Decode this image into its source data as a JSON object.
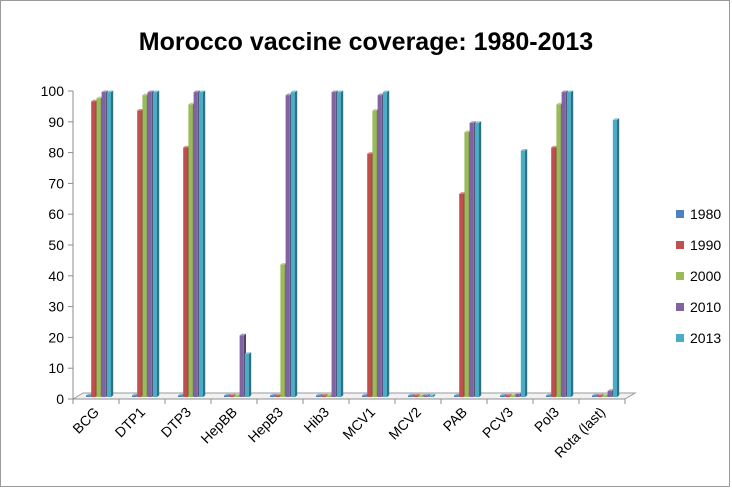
{
  "chart_data": {
    "type": "bar",
    "title": "Morocco vaccine coverage: 1980-2013",
    "xlabel": "",
    "ylabel": "",
    "ylim": [
      0,
      100
    ],
    "yticks": [
      0,
      10,
      20,
      30,
      40,
      50,
      60,
      70,
      80,
      90,
      100
    ],
    "grid": false,
    "legend_position": "right",
    "categories": [
      "BCG",
      "DTP1",
      "DTP3",
      "HepBB",
      "HepB3",
      "Hib3",
      "MCV1",
      "MCV2",
      "PAB",
      "PCV3",
      "Pol3",
      "Rota (last)"
    ],
    "series": [
      {
        "name": "1980",
        "color": "#4f81bd",
        "values": [
          0,
          0,
          0,
          0,
          0,
          0,
          0,
          0,
          0,
          0,
          0,
          0
        ]
      },
      {
        "name": "1990",
        "color": "#c0504d",
        "values": [
          96,
          93,
          81,
          0,
          0,
          0,
          79,
          0,
          66,
          0,
          81,
          0
        ]
      },
      {
        "name": "2000",
        "color": "#9bbb59",
        "values": [
          97,
          98,
          95,
          0,
          43,
          0,
          93,
          0,
          86,
          0,
          95,
          0
        ]
      },
      {
        "name": "2010",
        "color": "#8064a2",
        "values": [
          99,
          99,
          99,
          20,
          98,
          99,
          98,
          0,
          89,
          1,
          99,
          2
        ]
      },
      {
        "name": "2013",
        "color": "#4bacc6",
        "values": [
          99,
          99,
          99,
          14,
          99,
          99,
          99,
          0,
          89,
          80,
          99,
          90
        ]
      }
    ]
  }
}
